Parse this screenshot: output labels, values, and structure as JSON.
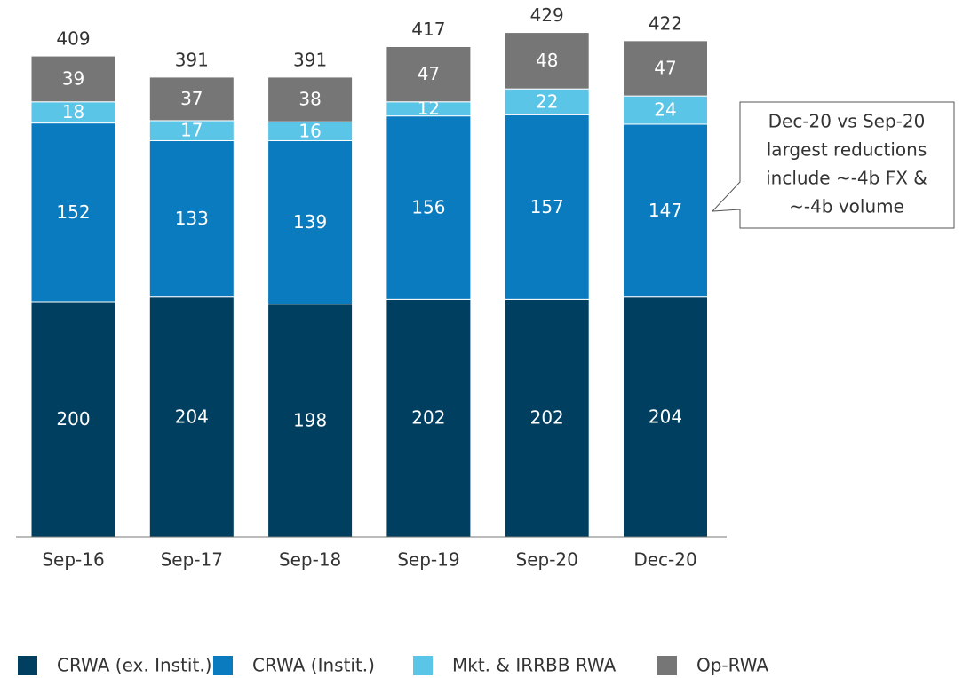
{
  "chart_data": {
    "type": "stacked_bar",
    "categories": [
      "Sep-16",
      "Sep-17",
      "Sep-18",
      "Sep-19",
      "Sep-20",
      "Dec-20"
    ],
    "series": [
      {
        "name": "CRWA (ex. Instit.)",
        "color": "#003f5f",
        "values": [
          200,
          204,
          198,
          202,
          202,
          204
        ]
      },
      {
        "name": "CRWA (Instit.)",
        "color": "#0a7bbf",
        "values": [
          152,
          133,
          139,
          156,
          157,
          147
        ]
      },
      {
        "name": "Mkt. & IRRBB RWA",
        "color": "#5bc5e8",
        "values": [
          18,
          17,
          16,
          12,
          22,
          24
        ]
      },
      {
        "name": "Op-RWA",
        "color": "#767676",
        "values": [
          39,
          37,
          38,
          47,
          48,
          47
        ]
      }
    ],
    "totals": [
      409,
      391,
      391,
      417,
      429,
      422
    ],
    "annotation": [
      "Dec-20 vs Sep-20",
      "largest reductions",
      "include ~-4b FX &",
      "~-4b volume"
    ],
    "legend": "bottom"
  }
}
